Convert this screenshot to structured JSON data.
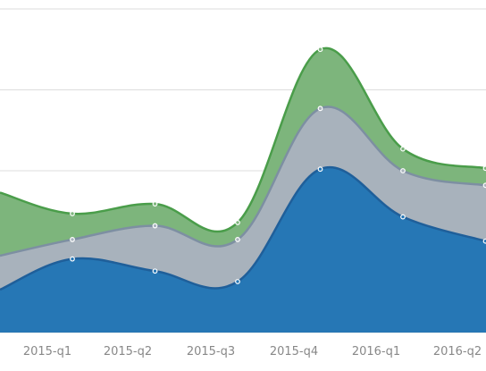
{
  "chart_data": {
    "type": "area",
    "stacked": true,
    "categories": [
      "2015-q1",
      "2015-q2",
      "2015-q3",
      "2015-q4",
      "2016-q1",
      "2016-q2"
    ],
    "x_before_first": 0.12,
    "x_after_last": 0.0,
    "series": [
      {
        "values": [
          91,
          76,
          63,
          202,
          143,
          113
        ],
        "color": "#2677b5",
        "line_color": "#1f5f9a",
        "start_value": 53
      },
      {
        "values": [
          115,
          132,
          115,
          277,
          200,
          182
        ],
        "color": "#a8b2bc",
        "line_color": "#7d8fa2",
        "start_value": 95
      },
      {
        "values": [
          147,
          159,
          136,
          350,
          227,
          203
        ],
        "color": "#7db57c",
        "line_color": "#4a9d4a",
        "start_value": 173
      }
    ],
    "ylim": [
      0,
      400
    ],
    "gridlines": [
      100,
      200,
      300
    ],
    "grid": true,
    "legend": "none",
    "title": "",
    "xlabel": "",
    "ylabel": ""
  }
}
